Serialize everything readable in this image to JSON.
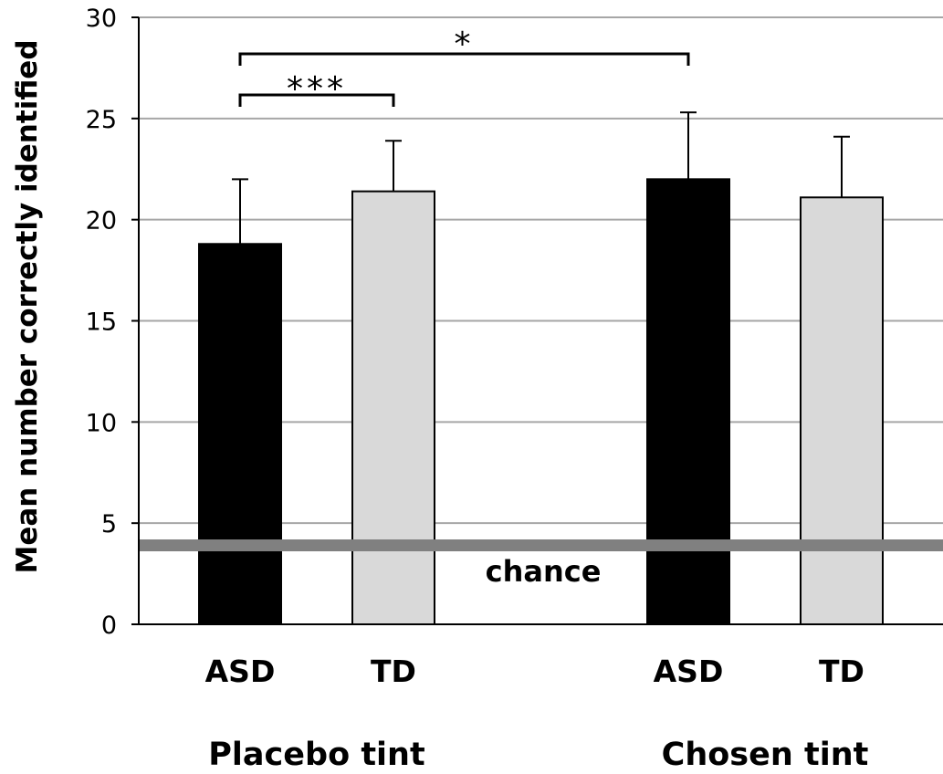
{
  "chart_data": {
    "type": "bar",
    "ylabel": "Mean number correctly identified",
    "ylim": [
      0,
      30
    ],
    "yticks": [
      0,
      5,
      10,
      15,
      20,
      25,
      30
    ],
    "grid": true,
    "groups": [
      {
        "label": "Placebo tint",
        "bars": [
          {
            "category": "ASD",
            "value": 18.8,
            "error": 3.2,
            "color": "#000000"
          },
          {
            "category": "TD",
            "value": 21.4,
            "error": 2.5,
            "color": "#d9d9d9"
          }
        ]
      },
      {
        "label": "Chosen tint",
        "bars": [
          {
            "category": "ASD",
            "value": 22.0,
            "error": 3.3,
            "color": "#000000"
          },
          {
            "category": "TD",
            "value": 21.1,
            "error": 3.0,
            "color": "#d9d9d9"
          }
        ]
      }
    ],
    "reference_line": {
      "value": 3.9,
      "label": "chance",
      "color": "#808080"
    },
    "significance": [
      {
        "from": [
          0,
          0
        ],
        "to": [
          0,
          1
        ],
        "label": "***"
      },
      {
        "from": [
          0,
          0
        ],
        "to": [
          1,
          0
        ],
        "label": "*"
      }
    ]
  }
}
